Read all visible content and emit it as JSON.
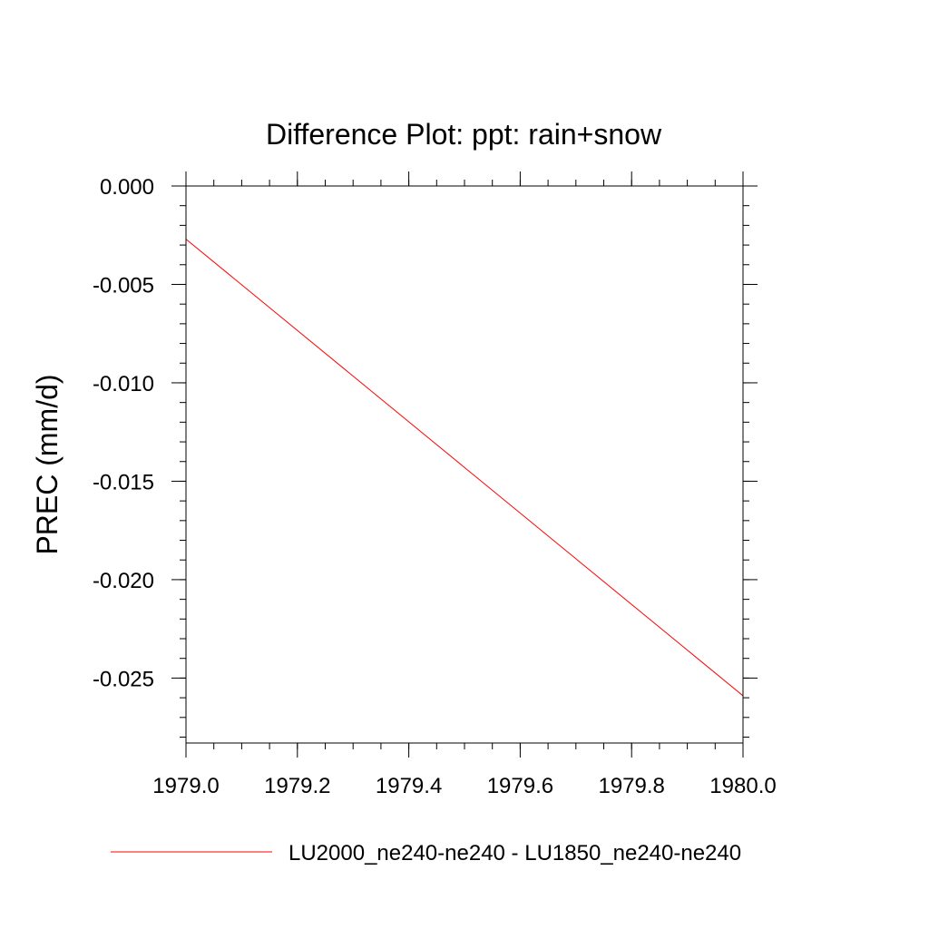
{
  "chart_data": {
    "type": "line",
    "title": "Difference Plot: ppt: rain+snow",
    "xlabel": "",
    "ylabel": "PREC  (mm/d)",
    "xlim": [
      1979.0,
      1980.0
    ],
    "ylim": [
      -0.0283,
      0.0
    ],
    "x_ticks": [
      1979.0,
      1979.2,
      1979.4,
      1979.6,
      1979.8,
      1980.0
    ],
    "x_tick_labels": [
      "1979.0",
      "1979.2",
      "1979.4",
      "1979.6",
      "1979.8",
      "1980.0"
    ],
    "y_ticks": [
      0.0,
      -0.005,
      -0.01,
      -0.015,
      -0.02,
      -0.025
    ],
    "y_tick_labels": [
      "0.000",
      "-0.005",
      "-0.010",
      "-0.015",
      "-0.020",
      "-0.025"
    ],
    "grid": false,
    "legend_position": "bottom",
    "series": [
      {
        "name": "LU2000_ne240-ne240 - LU1850_ne240-ne240",
        "color": "#ff0000",
        "x": [
          1979.0,
          1980.0
        ],
        "y": [
          -0.0027,
          -0.0259
        ]
      }
    ]
  }
}
